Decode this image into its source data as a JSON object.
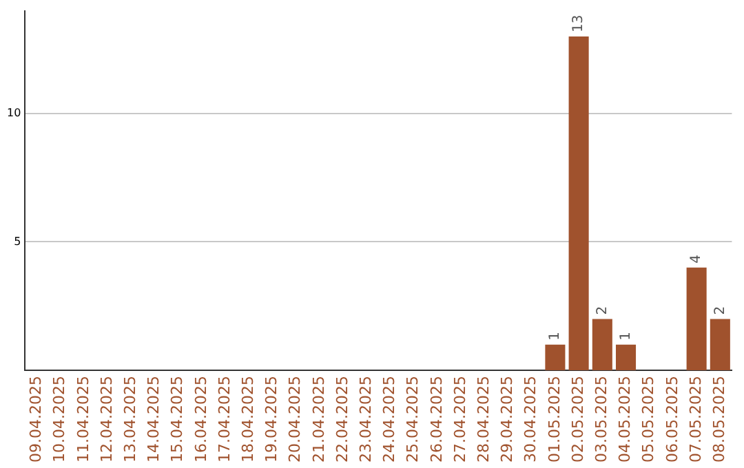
{
  "chart_data": {
    "type": "bar",
    "categories": [
      "09.04.2025",
      "10.04.2025",
      "11.04.2025",
      "12.04.2025",
      "13.04.2025",
      "14.04.2025",
      "15.04.2025",
      "16.04.2025",
      "17.04.2025",
      "18.04.2025",
      "19.04.2025",
      "20.04.2025",
      "21.04.2025",
      "22.04.2025",
      "23.04.2025",
      "24.04.2025",
      "25.04.2025",
      "26.04.2025",
      "27.04.2025",
      "28.04.2025",
      "29.04.2025",
      "30.04.2025",
      "01.05.2025",
      "02.05.2025",
      "03.05.2025",
      "04.05.2025",
      "05.05.2025",
      "06.05.2025",
      "07.05.2025",
      "08.05.2025"
    ],
    "values": [
      0,
      0,
      0,
      0,
      0,
      0,
      0,
      0,
      0,
      0,
      0,
      0,
      0,
      0,
      0,
      0,
      0,
      0,
      0,
      0,
      0,
      0,
      1,
      13,
      2,
      1,
      0,
      0,
      4,
      2
    ],
    "value_labels": [
      null,
      null,
      null,
      null,
      null,
      null,
      null,
      null,
      null,
      null,
      null,
      null,
      null,
      null,
      null,
      null,
      null,
      null,
      null,
      null,
      null,
      null,
      "1",
      "13",
      "2",
      "1",
      null,
      null,
      "4",
      "2"
    ],
    "color": "#a0522d",
    "ylim": [
      0,
      14
    ],
    "yticks": [
      5,
      10
    ],
    "grid": "y",
    "legend": false
  }
}
